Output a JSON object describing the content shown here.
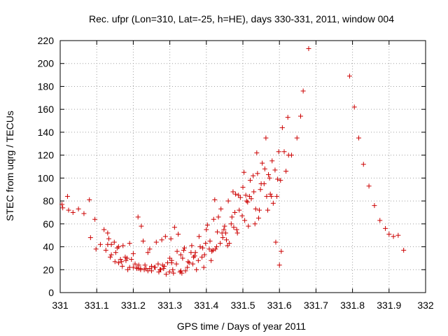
{
  "chart_data": {
    "type": "scatter",
    "title": "Rec. ufpr (Lon=310, Lat=-25, h=HE), days 330-331, 2011, window 004",
    "xlabel": "GPS time / Days of year 2011",
    "ylabel": "STEC from uqrg / TECUs",
    "xlim": [
      331,
      332
    ],
    "ylim": [
      0,
      220
    ],
    "xticks": [
      "331",
      "331.1",
      "331.2",
      "331.3",
      "331.4",
      "331.5",
      "331.6",
      "331.7",
      "331.8",
      "331.9",
      "332"
    ],
    "yticks": [
      "0",
      "20",
      "40",
      "60",
      "80",
      "100",
      "120",
      "140",
      "160",
      "180",
      "200",
      "220"
    ],
    "grid": true,
    "marker": "plus",
    "color": "#cc0000",
    "series": [
      {
        "x": [
          331.005,
          331.007,
          331.02,
          331.023,
          331.035,
          331.05,
          331.065,
          331.08,
          331.083,
          331.095,
          331.098,
          331.11,
          331.12,
          331.125,
          331.13,
          331.133,
          331.137,
          331.14,
          331.148,
          331.152,
          331.156,
          331.16,
          331.165,
          331.168,
          331.172,
          331.178,
          331.183,
          331.19,
          331.195,
          331.2,
          331.205,
          331.21,
          331.213,
          331.22,
          331.222,
          331.227,
          331.232,
          331.235,
          331.24,
          331.245,
          331.25,
          331.258,
          331.263,
          331.268,
          331.273,
          331.278,
          331.283,
          331.288,
          331.294,
          331.299,
          331.303,
          331.308,
          331.313,
          331.318,
          331.323,
          331.328,
          331.333,
          331.338,
          331.343,
          331.348,
          331.353,
          331.358,
          331.363,
          331.368,
          331.373,
          331.378,
          331.383,
          331.388,
          331.393,
          331.398,
          331.403,
          331.408,
          331.413,
          331.418,
          331.423,
          331.428,
          331.433,
          331.438,
          331.443,
          331.448,
          331.453,
          331.458,
          331.463,
          331.468,
          331.473,
          331.478,
          331.483,
          331.488,
          331.493,
          331.498,
          331.503,
          331.508,
          331.513,
          331.518,
          331.523,
          331.528,
          331.533,
          331.538,
          331.543,
          331.548,
          331.553,
          331.558,
          331.563,
          331.568,
          331.573,
          331.578,
          331.583,
          331.588,
          331.593,
          331.598,
          331.603,
          331.608,
          331.613,
          331.618,
          331.623,
          331.633,
          331.648,
          331.658,
          331.665,
          331.68,
          331.792,
          331.805,
          331.817,
          331.83,
          331.845,
          331.86,
          331.875,
          331.89,
          331.9,
          331.912,
          331.925,
          331.94,
          331.14,
          331.16,
          331.18,
          331.2,
          331.22,
          331.24,
          331.26,
          331.28,
          331.3,
          331.32,
          331.34,
          331.36,
          331.38,
          331.4,
          331.42,
          331.44,
          331.46,
          331.48,
          331.5,
          331.52,
          331.54,
          331.56,
          331.58,
          331.6,
          331.17,
          331.19,
          331.21,
          331.23,
          331.25,
          331.27,
          331.29,
          331.31,
          331.33,
          331.35,
          331.37,
          331.39,
          331.41,
          331.43,
          331.45,
          331.47,
          331.49,
          331.51,
          331.53,
          331.55,
          331.57,
          331.59,
          331.13,
          331.15,
          331.185,
          331.215,
          331.245,
          331.275,
          331.305,
          331.335,
          331.365,
          331.395,
          331.425,
          331.455,
          331.485,
          331.515,
          331.545,
          331.575,
          331.605,
          331.215,
          331.285,
          331.305,
          331.33,
          331.415,
          331.445,
          331.475,
          331.505,
          331.535,
          331.565,
          331.595,
          331.625
        ],
        "y": [
          77,
          74,
          84,
          72,
          70,
          73,
          69,
          81,
          48,
          64,
          38,
          42,
          55,
          37,
          52,
          47,
          31,
          42,
          44,
          35,
          39,
          40,
          29,
          27,
          41,
          31,
          30,
          43,
          29,
          34,
          25,
          22,
          66,
          21,
          58,
          45,
          24,
          21,
          35,
          38,
          23,
          22,
          44,
          25,
          20,
          46,
          21,
          49,
          26,
          18,
          47,
          20,
          57,
          25,
          51,
          18,
          17,
          37,
          19,
          22,
          26,
          35,
          25,
          32,
          20,
          28,
          40,
          31,
          22,
          43,
          59,
          38,
          28,
          37,
          81,
          40,
          66,
          43,
          52,
          55,
          52,
          41,
          43,
          60,
          88,
          70,
          55,
          85,
          83,
          67,
          105,
          85,
          79,
          84,
          82,
          102,
          60,
          122,
          65,
          90,
          113,
          95,
          135,
          72,
          100,
          84,
          78,
          107,
          84,
          123,
          98,
          144,
          123,
          106,
          153,
          120,
          135,
          154,
          176,
          213,
          189,
          162,
          135,
          112,
          93,
          76,
          63,
          56,
          51,
          49,
          50,
          37,
          33,
          26,
          28,
          22,
          20,
          19,
          22,
          24,
          30,
          36,
          39,
          41,
          49,
          55,
          64,
          73,
          80,
          86,
          92,
          98,
          104,
          108,
          115,
          24,
          23,
          22,
          21,
          20,
          19,
          18,
          16,
          17,
          19,
          27,
          35,
          39,
          45,
          53,
          58,
          66,
          72,
          80,
          88,
          95,
          103,
          44,
          42,
          27,
          20,
          21,
          21,
          20,
          28,
          30,
          31,
          33,
          38,
          46,
          52,
          58,
          72,
          86,
          36,
          24,
          23,
          26,
          33,
          36,
          48,
          57,
          63,
          73,
          84,
          99,
          120
        ]
      }
    ]
  }
}
